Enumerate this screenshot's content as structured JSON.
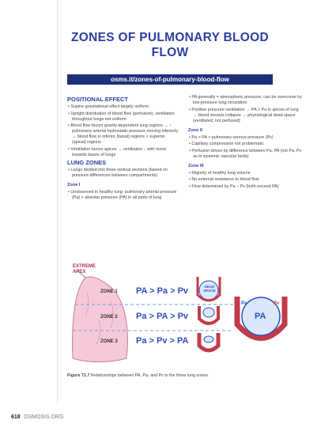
{
  "title": "ZONES OF PULMONARY BLOOD FLOW",
  "link": "osms.it/zones-of-pulmonary-blood-flow",
  "left_column": [
    {
      "kind": "heading",
      "text": "POSITIONAL EFFECT"
    },
    {
      "kind": "bullet",
      "text": "Supine gravitational effect largely uniform"
    },
    {
      "kind": "bullet",
      "text": "Upright distribution of blood flow (perfusion), ventilation throughout lungs not uniform"
    },
    {
      "kind": "bullet",
      "text": "Blood flow favors gravity-dependent lung regions → ↑ pulmonary arterial hydrostatic pressure moving inferiorly → blood flow in inferior (basal) regions > superior (apical) regions"
    },
    {
      "kind": "bullet",
      "text": "Ventilation favors apices → ventilation ↓ with move towards bases of lungs"
    },
    {
      "kind": "heading",
      "text": "LUNG ZONES"
    },
    {
      "kind": "bullet",
      "text": "Lungs divided into three vertical sections (based on pressure differences between compartments)"
    },
    {
      "kind": "subheading",
      "text": "Zone I"
    },
    {
      "kind": "bullet",
      "text": "Unobserved in healthy lung: pulmonary arterial pressure (Pa) > alveolar pressure (PA) in all parts of lung"
    }
  ],
  "right_column": [
    {
      "kind": "bullet",
      "text": "PA generally = atmospheric pressure; can be overcome by low-pressure lung circulation"
    },
    {
      "kind": "bullet",
      "text": "Positive pressure ventilation → PA > Pa in apices of lung → blood vessels collapse → physiological dead space (ventilated, not perfused)"
    },
    {
      "kind": "subheading",
      "text": "Zone II"
    },
    {
      "kind": "bullet",
      "text": "Pa > PA > pulmonary venous pressure (Pv)"
    },
    {
      "kind": "bullet",
      "text": "Capillary compression not problematic"
    },
    {
      "kind": "bullet",
      "text": "Perfusion driven by difference between Pa, PA (not Pa, Pv as in systemic vascular beds)"
    },
    {
      "kind": "subheading",
      "text": "Zone III"
    },
    {
      "kind": "bullet",
      "text": "Majority of healthy lung volume"
    },
    {
      "kind": "bullet",
      "text": "No external resistance to blood flow"
    },
    {
      "kind": "bullet",
      "text": "Flow determined by Pa – Pv (both exceed PA)"
    }
  ],
  "figure": {
    "apex_label": "EXTREME APEX",
    "zones": [
      {
        "label": "ZONE 1",
        "relation": "PA > Pa > Pv"
      },
      {
        "label": "ZONE 2",
        "relation": "Pa > PA > Pv"
      },
      {
        "label": "ZONE 3",
        "relation": "Pa > Pv > PA"
      }
    ],
    "dead_space": "DEAD SPACE",
    "vessel_labels": [
      "Pa",
      "Pv",
      "PA"
    ],
    "caption_number": "Figure 71.7",
    "caption": "Relationships between PA, Pa, and Pv in the three lung zones."
  },
  "footer": {
    "page": "618",
    "site": "OSMOSIS.ORG"
  }
}
